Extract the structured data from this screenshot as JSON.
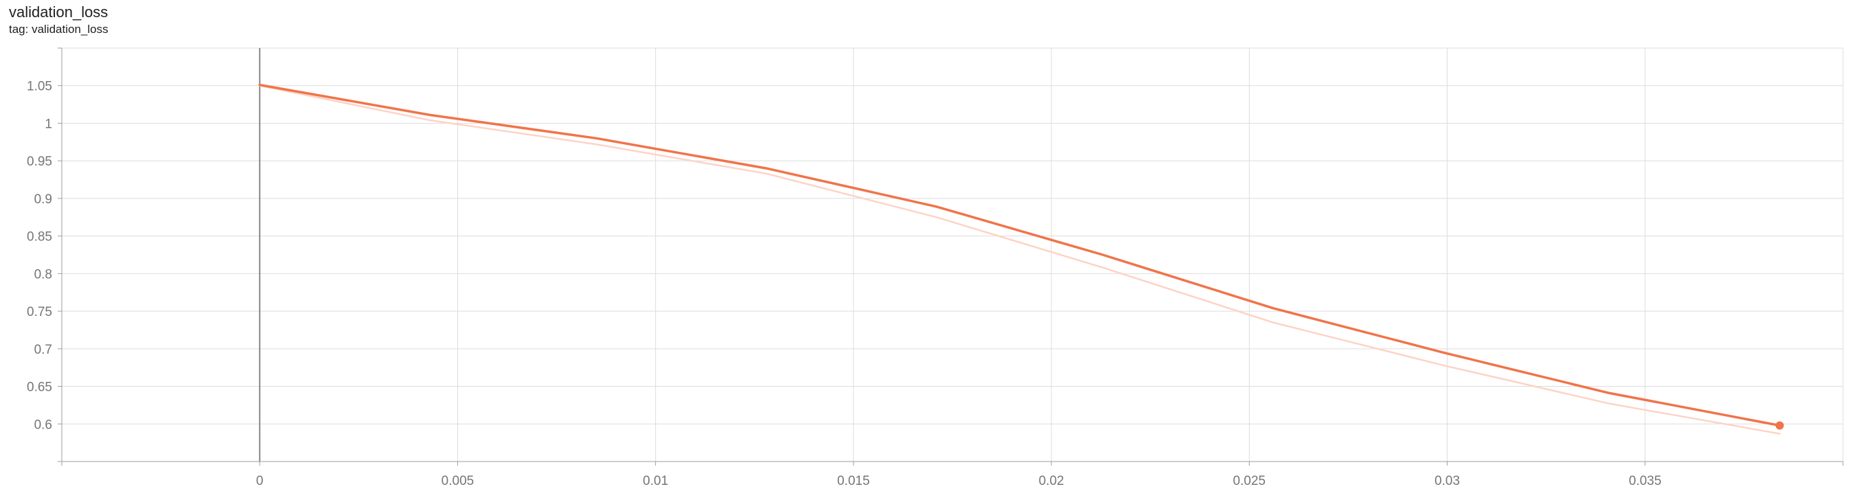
{
  "card": {
    "title": "validation_loss",
    "tag": "tag: validation_loss"
  },
  "colors": {
    "smoothed_line": "#f0744a",
    "raw_line": "#fdd3c6",
    "grid": "#dddddd",
    "axis": "#9e9e9e",
    "zero_axis": "#888888",
    "tick_text": "#757575"
  },
  "chart_data": {
    "type": "line",
    "title": "",
    "xlabel": "",
    "ylabel": "",
    "xlim": [
      -0.005,
      0.04
    ],
    "ylim": [
      0.55,
      1.1
    ],
    "grid": true,
    "legend": "none",
    "x_ticks": [
      0,
      0.005,
      0.01,
      0.015,
      0.02,
      0.025,
      0.03,
      0.035
    ],
    "x_tick_labels": [
      "0",
      "0.005",
      "0.01",
      "0.015",
      "0.02",
      "0.025",
      "0.03",
      "0.035"
    ],
    "y_ticks": [
      0.6,
      0.65,
      0.7,
      0.75,
      0.8,
      0.85,
      0.9,
      0.95,
      1,
      1.05
    ],
    "y_tick_labels": [
      "0.6",
      "0.65",
      "0.7",
      "0.75",
      "0.8",
      "0.85",
      "0.9",
      "0.95",
      "1",
      "1.05"
    ],
    "series": [
      {
        "role": "raw",
        "x": [
          0,
          0.0043,
          0.0085,
          0.0128,
          0.0171,
          0.0213,
          0.0256,
          0.0299,
          0.0341,
          0.0384
        ],
        "y": [
          1.05,
          1.004,
          0.972,
          0.933,
          0.875,
          0.808,
          0.735,
          0.678,
          0.627,
          0.587
        ]
      },
      {
        "role": "smoothed",
        "x": [
          0,
          0.0043,
          0.0085,
          0.0128,
          0.0171,
          0.0213,
          0.0256,
          0.0299,
          0.0341,
          0.0384
        ],
        "y": [
          1.051,
          1.011,
          0.98,
          0.94,
          0.889,
          0.825,
          0.754,
          0.695,
          0.641,
          0.598
        ]
      }
    ]
  }
}
